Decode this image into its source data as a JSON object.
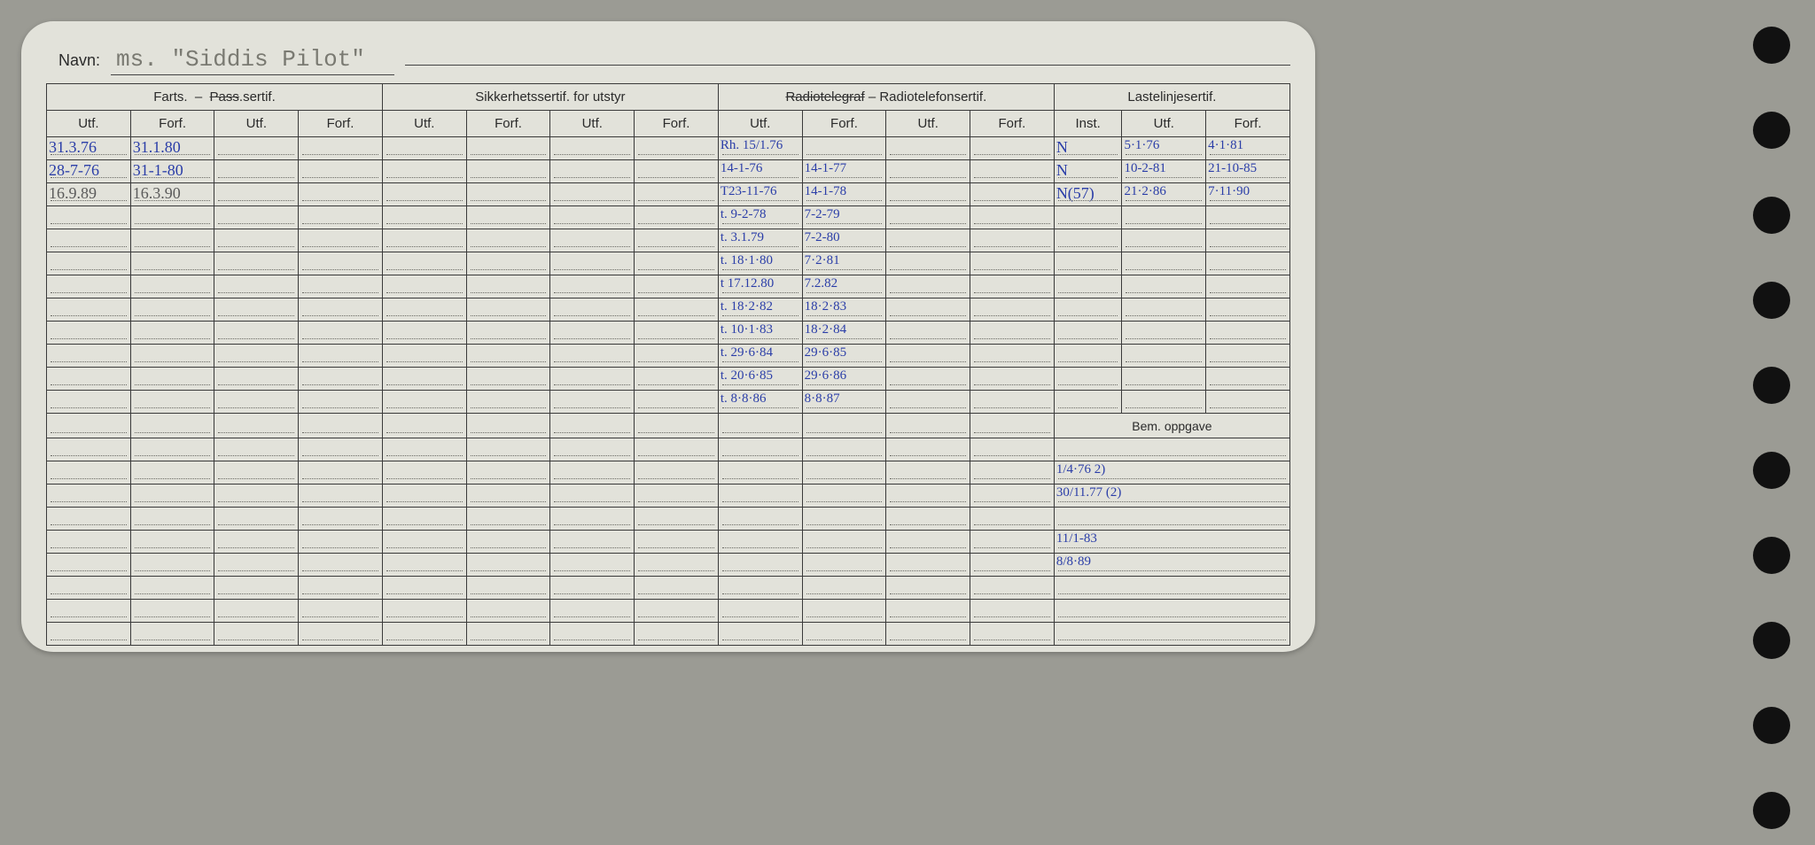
{
  "card": {
    "navn_label": "Navn:",
    "navn_value": "ms. \"Siddis Pilot\"",
    "colors": {
      "background": "#9b9b94",
      "card": "#e2e2da",
      "ink": "#2b2b2b",
      "handwriting": "#2b3ea8",
      "handwriting_gray": "#5b5b5b",
      "border": "#3a3a3a",
      "dotted": "#6a6a64"
    }
  },
  "sections": {
    "farts": {
      "title": "Farts. – Pass.sertif.",
      "strike_word": "Pass",
      "sub": [
        "Utf.",
        "Forf.",
        "Utf.",
        "Forf."
      ]
    },
    "sikkerhet": {
      "title": "Sikkerhetssertif. for utstyr",
      "sub": [
        "Utf.",
        "Forf.",
        "Utf.",
        "Forf."
      ]
    },
    "radio": {
      "title": "Radiotelegraf – Radiotelefonsertif.",
      "strike_word": "Radiotelegraf",
      "sub": [
        "Utf.",
        "Forf.",
        "Utf.",
        "Forf."
      ]
    },
    "laste": {
      "title": "Lastelinjesertif.",
      "sub": [
        "Inst.",
        "Utf.",
        "Forf."
      ]
    },
    "bem": {
      "title": "Bem. oppgave"
    }
  },
  "rows": {
    "farts": [
      {
        "c0": "31.3.76",
        "c1": "31.1.80"
      },
      {
        "c0": "28-7-76",
        "c1": "31-1-80"
      },
      {
        "c0": "16.9.89",
        "c1": "16.3.90",
        "gray": true
      }
    ],
    "radio": [
      {
        "c0": "Rh. 15/1.76",
        "c1": ""
      },
      {
        "c0": "14-1-76",
        "c1": "14-1-77"
      },
      {
        "c0": "T23-11-76",
        "c1": "14-1-78"
      },
      {
        "c0": "t. 9-2-78",
        "c1": "7-2-79"
      },
      {
        "c0": "t. 3.1.79",
        "c1": "7-2-80"
      },
      {
        "c0": "t. 18·1·80",
        "c1": "7·2·81"
      },
      {
        "c0": "t 17.12.80",
        "c1": "7.2.82"
      },
      {
        "c0": "t. 18·2·82",
        "c1": "18·2·83"
      },
      {
        "c0": "t. 10·1·83",
        "c1": "18·2·84"
      },
      {
        "c0": "t. 29·6·84",
        "c1": "29·6·85"
      },
      {
        "c0": "t. 20·6·85",
        "c1": "29·6·86"
      },
      {
        "c0": "t. 8·8·86",
        "c1": "8·8·87"
      }
    ],
    "laste": [
      {
        "c0": "N",
        "c1": "5·1·76",
        "c2": "4·1·81"
      },
      {
        "c0": "N",
        "c1": "10-2-81",
        "c2": "21-10-85"
      },
      {
        "c0": "N(57)",
        "c1": "21·2·86",
        "c2": "7·11·90"
      }
    ],
    "bem": [
      "1/4·76  2)",
      "30/11.77  (2)",
      "11/1-83",
      "8/8·89"
    ]
  },
  "layout": {
    "total_body_rows": 22,
    "bem_start_row": 12
  }
}
